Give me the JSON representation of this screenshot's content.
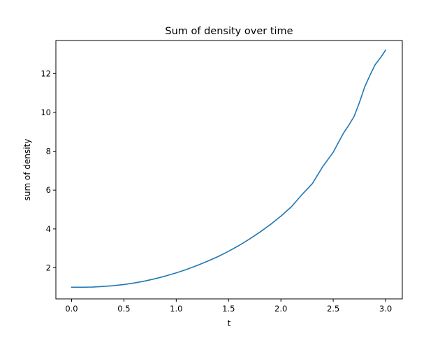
{
  "chart_data": {
    "type": "line",
    "title": "Sum of density over time",
    "xlabel": "t",
    "ylabel": "sum of density",
    "xlim": [
      -0.15,
      3.16
    ],
    "ylim": [
      0.4,
      13.7
    ],
    "xticks": [
      0.0,
      0.5,
      1.0,
      1.5,
      2.0,
      2.5,
      3.0
    ],
    "xtick_labels": [
      "0.0",
      "0.5",
      "1.0",
      "1.5",
      "2.0",
      "2.5",
      "3.0"
    ],
    "yticks": [
      2,
      4,
      6,
      8,
      10,
      12
    ],
    "ytick_labels": [
      "2",
      "4",
      "6",
      "8",
      "10",
      "12"
    ],
    "grid": false,
    "legend": "none",
    "series": [
      {
        "color": "#1f77b4",
        "x": [
          0.0,
          0.1,
          0.2,
          0.3,
          0.4,
          0.5,
          0.6,
          0.7,
          0.8,
          0.9,
          1.0,
          1.1,
          1.2,
          1.3,
          1.4,
          1.5,
          1.6,
          1.7,
          1.8,
          1.9,
          2.0,
          2.1,
          2.2,
          2.3,
          2.4,
          2.5,
          2.55,
          2.6,
          2.65,
          2.7,
          2.75,
          2.8,
          2.85,
          2.9,
          2.95,
          3.0
        ],
        "y": [
          1.0,
          1.0,
          1.01,
          1.04,
          1.08,
          1.14,
          1.22,
          1.32,
          1.44,
          1.58,
          1.74,
          1.92,
          2.12,
          2.34,
          2.58,
          2.85,
          3.15,
          3.48,
          3.84,
          4.23,
          4.66,
          5.14,
          5.76,
          6.33,
          7.21,
          7.95,
          8.45,
          8.95,
          9.35,
          9.8,
          10.5,
          11.3,
          11.9,
          12.45,
          12.8,
          13.2
        ]
      }
    ]
  }
}
